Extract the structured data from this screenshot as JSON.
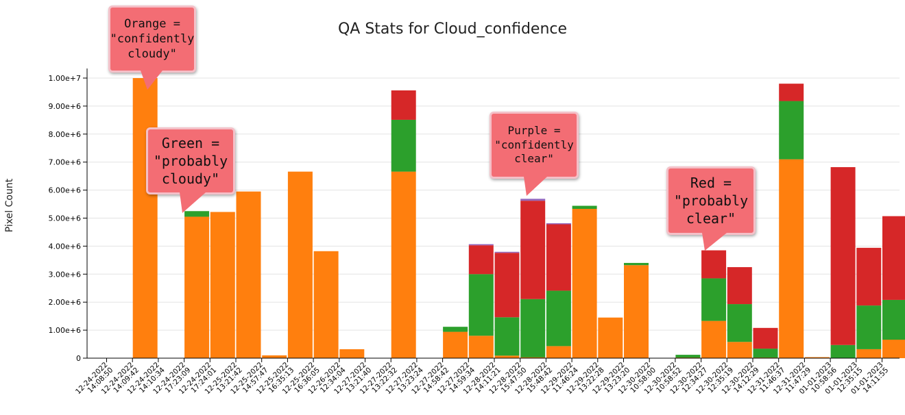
{
  "chart_data": {
    "type": "bar",
    "title": "QA Stats for Cloud_confidence",
    "ylabel": "Pixel Count",
    "xlabel": "",
    "ylim": [
      0,
      10000000
    ],
    "yticks": [
      "0",
      "1.00e+6",
      "2.00e+6",
      "3.00e+6",
      "4.00e+6",
      "5.00e+6",
      "6.00e+6",
      "7.00e+6",
      "8.00e+6",
      "9.00e+6",
      "1.00e+7"
    ],
    "grid": true,
    "stacked": true,
    "categories": [
      "12-24-2022 14:08:50",
      "12-24-2022 14:09:42",
      "12-24-2022 14:10:34",
      "12-24-2022 17:23:09",
      "12-24-2022 17:24:01",
      "12-25-2022 13:21:42",
      "12-25-2022 14:57:47",
      "12-25-2022 16:35:13",
      "12-25-2022 16:36:05",
      "12-26-2022 12:34:04",
      "12-27-2022 13:21:40",
      "12-27-2022 13:22:32",
      "12-27-2022 13:23:24",
      "12-27-2022 14:58:42",
      "12-27-2022 14:59:34",
      "12-28-2022 14:11:21",
      "12-28-2022 15:47:50",
      "12-28-2022 15:48:42",
      "12-29-2022 11:46:24",
      "12-29-2022 13:22:28",
      "12-29-2022 13:23:20",
      "12-30-2022 10:58:00",
      "12-30-2022 10:58:52",
      "12-30-2022 12:34:27",
      "12-30-2022 12:35:19",
      "12-30-2022 14:12:29",
      "12-31-2022 11:46:37",
      "12-31-2022 11:47:29",
      "01-01-2023 10:58:56",
      "01-01-2023 12:35:15",
      "01-01-2023 14:11:55"
    ],
    "series": [
      {
        "key": "orange",
        "color": "#ff7f0e",
        "values": [
          0,
          10000000,
          0,
          5050000,
          5220000,
          5950000,
          100000,
          6660000,
          3820000,
          320000,
          0,
          6660000,
          0,
          940000,
          800000,
          90000,
          30000,
          430000,
          5330000,
          1450000,
          3320000,
          0,
          20000,
          1330000,
          580000,
          20000,
          7100000,
          20000,
          0,
          320000,
          660000
        ]
      },
      {
        "key": "green",
        "color": "#2ca02c",
        "values": [
          0,
          0,
          0,
          200000,
          0,
          0,
          0,
          0,
          0,
          0,
          0,
          1850000,
          0,
          180000,
          2200000,
          1370000,
          2080000,
          1980000,
          110000,
          0,
          80000,
          0,
          100000,
          1520000,
          1350000,
          320000,
          2080000,
          0,
          470000,
          1560000,
          1420000
        ]
      },
      {
        "key": "red",
        "color": "#d62728",
        "values": [
          0,
          0,
          0,
          0,
          0,
          0,
          0,
          0,
          0,
          0,
          0,
          1050000,
          0,
          0,
          1030000,
          2300000,
          3510000,
          2370000,
          0,
          0,
          0,
          0,
          0,
          1000000,
          1320000,
          740000,
          620000,
          0,
          6350000,
          2060000,
          2990000
        ]
      },
      {
        "key": "purple",
        "color": "#9467bd",
        "values": [
          0,
          0,
          0,
          0,
          0,
          0,
          0,
          0,
          0,
          0,
          0,
          0,
          0,
          0,
          40000,
          20000,
          70000,
          30000,
          0,
          0,
          0,
          0,
          0,
          0,
          0,
          0,
          0,
          0,
          0,
          0,
          0
        ]
      }
    ],
    "annotations": [
      {
        "key": "orange",
        "text": "Orange =\n\"confidently\ncloudy\""
      },
      {
        "key": "green",
        "text": "Green =\n\"probably\ncloudy\""
      },
      {
        "key": "purple",
        "text": "Purple =\n\"confidently\nclear\""
      },
      {
        "key": "red",
        "text": "Red =\n\"probably\nclear\""
      }
    ]
  }
}
